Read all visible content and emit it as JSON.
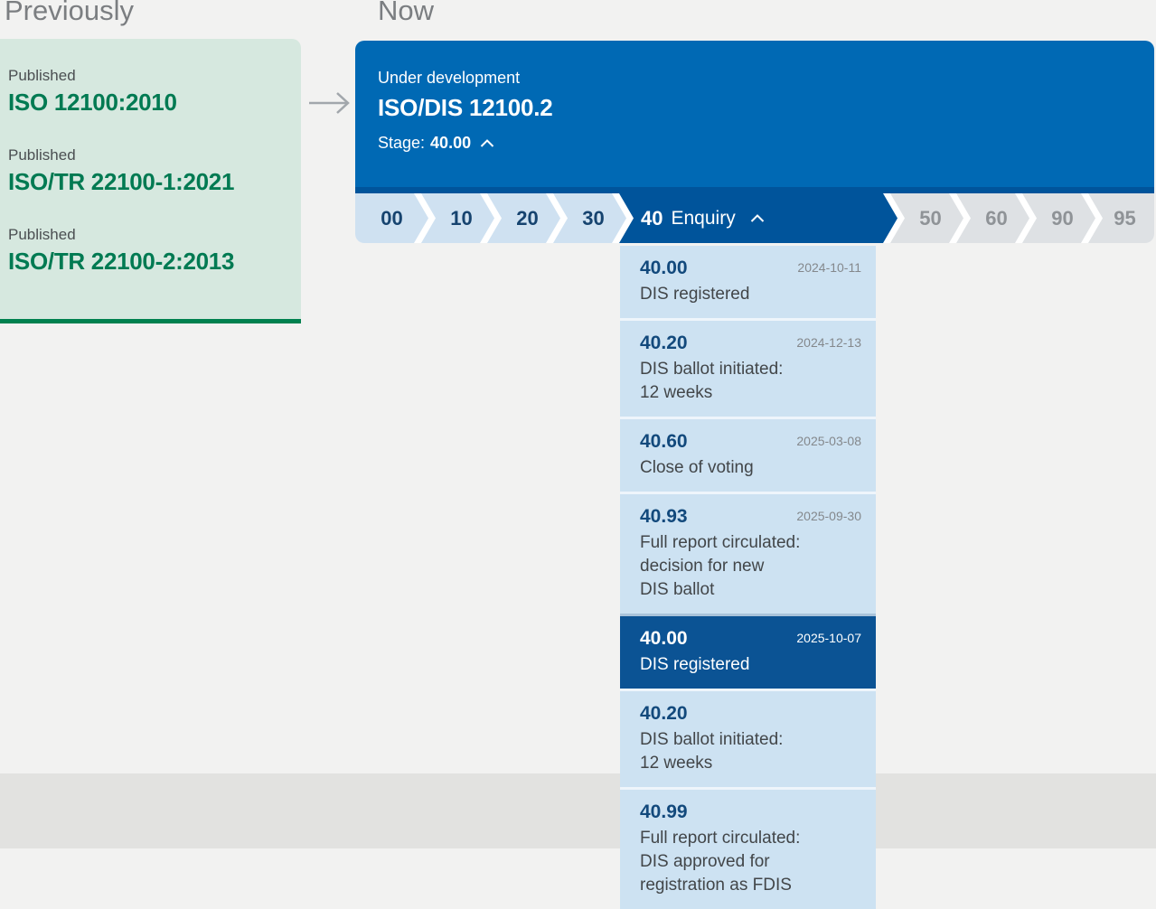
{
  "headings": {
    "previously": "Previously",
    "now": "Now"
  },
  "previously": {
    "items": [
      {
        "status": "Published",
        "code": "ISO 12100:2010"
      },
      {
        "status": "Published",
        "code": "ISO/TR 22100-1:2021"
      },
      {
        "status": "Published",
        "code": "ISO/TR 22100-2:2013"
      }
    ]
  },
  "now": {
    "status": "Under development",
    "code": "ISO/DIS 12100.2",
    "stage_label": "Stage:",
    "stage_value": "40.00"
  },
  "stage_bar": {
    "stages": [
      {
        "code": "00",
        "state": "past"
      },
      {
        "code": "10",
        "state": "past"
      },
      {
        "code": "20",
        "state": "past"
      },
      {
        "code": "30",
        "state": "past"
      },
      {
        "code": "40",
        "label": "Enquiry",
        "state": "current",
        "expanded": true
      },
      {
        "code": "50",
        "state": "future"
      },
      {
        "code": "60",
        "state": "future"
      },
      {
        "code": "90",
        "state": "future"
      },
      {
        "code": "95",
        "state": "future"
      }
    ]
  },
  "stage_dropdown": {
    "items": [
      {
        "code": "40.00",
        "date": "2024-10-11",
        "desc_lines": [
          "DIS registered"
        ],
        "selected": false
      },
      {
        "code": "40.20",
        "date": "2024-12-13",
        "desc_lines": [
          "DIS ballot initiated:",
          "12 weeks"
        ],
        "selected": false
      },
      {
        "code": "40.60",
        "date": "2025-03-08",
        "desc_lines": [
          "Close of voting"
        ],
        "selected": false
      },
      {
        "code": "40.93",
        "date": "2025-09-30",
        "desc_lines": [
          "Full report circulated:",
          "decision for new",
          "DIS ballot"
        ],
        "selected": false
      },
      {
        "code": "40.00",
        "date": "2025-10-07",
        "desc_lines": [
          "DIS registered"
        ],
        "selected": true
      },
      {
        "code": "40.20",
        "date": "",
        "desc_lines": [
          "DIS ballot initiated:",
          "12 weeks"
        ],
        "selected": false
      },
      {
        "code": "40.99",
        "date": "",
        "desc_lines": [
          "Full report circulated:",
          "DIS approved for",
          "registration as FDIS"
        ],
        "selected": false
      }
    ]
  },
  "colors": {
    "brand_blue": "#0069b4",
    "dark_blue": "#00549b",
    "selected_item_blue": "#0b5394",
    "stage_light_blue": "#cfe1f1",
    "dropdown_blue": "#cde2f2",
    "stage_inactive_gray": "#dee1e4",
    "green_card_bg": "#d6e8df",
    "green_accent_border": "#00814f",
    "green_link": "#007a52",
    "page_bg": "#f2f2f1",
    "footer_band": "#e2e2e0"
  }
}
